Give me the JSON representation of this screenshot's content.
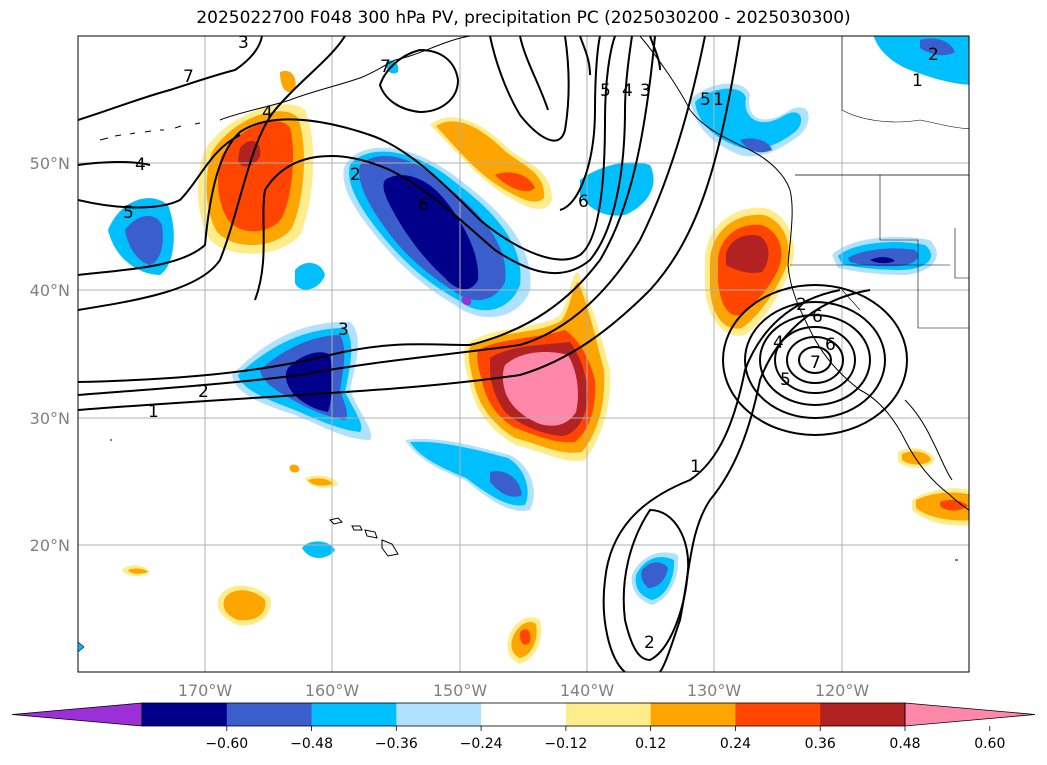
{
  "title": "2025022700 F048 300 hPa PV, precipitation PC (2025030200 - 2025030300)",
  "map": {
    "projection": "PlateCarree",
    "lon_range": [
      -180,
      -110
    ],
    "lat_range": [
      10,
      60
    ],
    "gridlines": true,
    "lat_labels": [
      "20°N",
      "30°N",
      "40°N",
      "50°N"
    ],
    "lon_labels": [
      "170°W",
      "160°W",
      "150°W",
      "140°W",
      "130°W",
      "120°W"
    ]
  },
  "pv_contour_labels": [
    "1",
    "2",
    "3",
    "4",
    "5",
    "6",
    "7",
    "2",
    "3",
    "4",
    "5",
    "6",
    "7",
    "1",
    "2",
    "1",
    "2",
    "3",
    "4",
    "5",
    "6",
    "1",
    "2",
    "4",
    "5",
    "6",
    "7"
  ],
  "colorbar": {
    "extend": "both",
    "colors": [
      "#9b30d9",
      "#00008b",
      "#3a5fcd",
      "#00bfff",
      "#b0e2ff",
      "#ffffff",
      "#ffec8b",
      "#ffa500",
      "#ff4500",
      "#b22222",
      "#ff88aa"
    ],
    "ticks": [
      "−0.60",
      "−0.48",
      "−0.36",
      "−0.24",
      "−0.12",
      "0.12",
      "0.24",
      "0.36",
      "0.48",
      "0.60"
    ]
  },
  "colors": {
    "contour": "#000000",
    "coast": "#000000",
    "grid": "#b0b0b0"
  }
}
